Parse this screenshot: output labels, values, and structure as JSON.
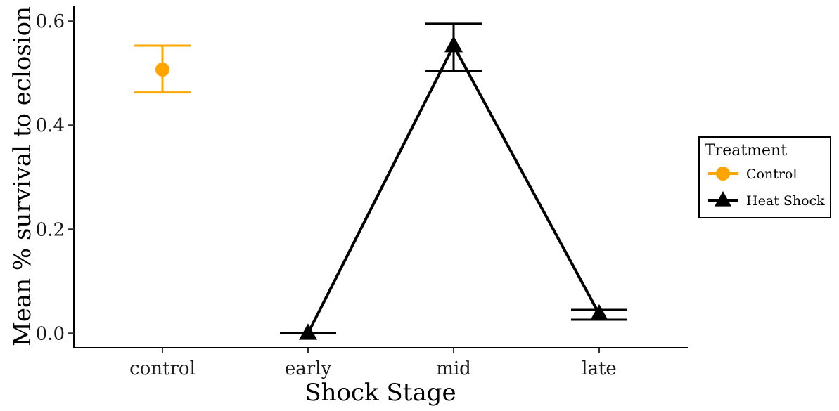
{
  "chart_data": {
    "type": "line",
    "xlabel": "Shock Stage",
    "ylabel": "Mean % survival to eclosion",
    "categories": [
      "control",
      "early",
      "mid",
      "late"
    ],
    "ylim": [
      -0.028,
      0.63
    ],
    "yticks": [
      0.0,
      0.2,
      0.4,
      0.6
    ],
    "ytick_labels": [
      "0.0",
      "0.2",
      "0.4",
      "0.6"
    ],
    "grid": false,
    "legend": {
      "title": "Treatment",
      "placement": "right",
      "entries": [
        {
          "label": "Control",
          "color": "#FFA500",
          "marker": "circle"
        },
        {
          "label": "Heat Shock",
          "color": "#000000",
          "marker": "triangle"
        }
      ]
    },
    "series": [
      {
        "name": "Control",
        "color": "#FFA500",
        "marker": "circle",
        "connect": false,
        "points": [
          {
            "x": "control",
            "y": 0.507,
            "ymin": 0.463,
            "ymax": 0.553
          }
        ]
      },
      {
        "name": "Heat Shock",
        "color": "#000000",
        "marker": "triangle",
        "connect": true,
        "points": [
          {
            "x": "early",
            "y": 0.0,
            "ymin": 0.0,
            "ymax": 0.0
          },
          {
            "x": "mid",
            "y": 0.553,
            "ymin": 0.505,
            "ymax": 0.595
          },
          {
            "x": "late",
            "y": 0.037,
            "ymin": 0.026,
            "ymax": 0.045
          }
        ]
      }
    ]
  }
}
